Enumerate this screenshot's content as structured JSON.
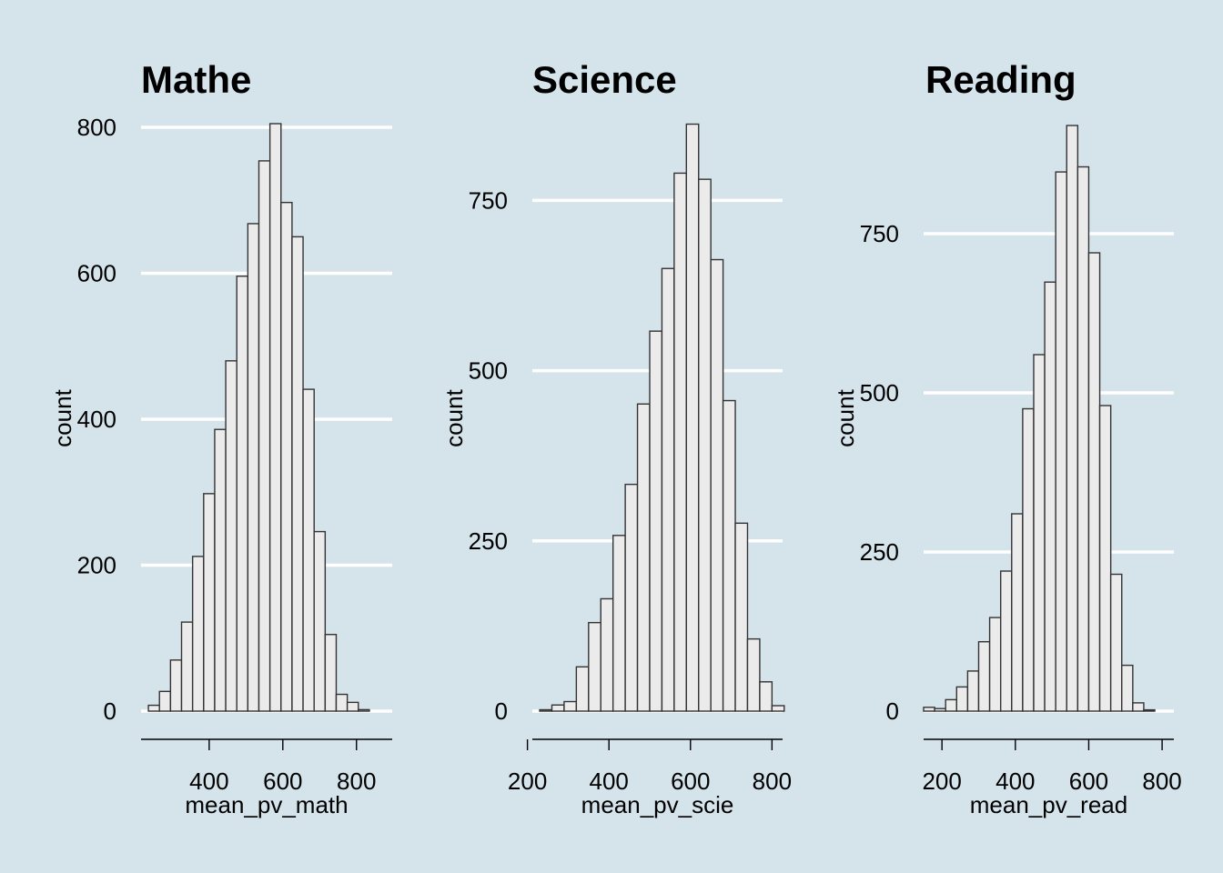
{
  "chart_data": [
    {
      "type": "bar",
      "title": "Mathe",
      "xlabel": "mean_pv_math",
      "ylabel": "count",
      "xlim": [
        215,
        897
      ],
      "ylim": [
        0,
        800
      ],
      "xticks": [
        400,
        600,
        800
      ],
      "yticks": [
        0,
        200,
        400,
        600,
        800
      ],
      "bin_width": 30,
      "bins": [
        250,
        280,
        310,
        340,
        370,
        400,
        430,
        460,
        490,
        520,
        550,
        580,
        610,
        640,
        670,
        700,
        730,
        760,
        790,
        820,
        850
      ],
      "values": [
        8,
        27,
        70,
        122,
        212,
        298,
        386,
        480,
        596,
        668,
        754,
        805,
        697,
        650,
        441,
        246,
        105,
        23,
        12,
        2,
        0
      ]
    },
    {
      "type": "bar",
      "title": "Science",
      "xlabel": "mean_pv_scie",
      "ylabel": "count",
      "xlim": [
        212,
        826
      ],
      "ylim": [
        0,
        860
      ],
      "xticks": [
        200,
        400,
        600,
        800
      ],
      "yticks": [
        0,
        250,
        500,
        750
      ],
      "bin_width": 30,
      "bins": [
        245,
        275,
        305,
        335,
        365,
        395,
        425,
        455,
        485,
        515,
        545,
        575,
        605,
        635,
        665,
        695,
        725,
        755,
        785,
        815
      ],
      "values": [
        2,
        9,
        14,
        65,
        130,
        165,
        258,
        333,
        451,
        558,
        650,
        790,
        862,
        781,
        663,
        456,
        276,
        106,
        43,
        8
      ]
    },
    {
      "type": "bar",
      "title": "Reading",
      "xlabel": "mean_pv_read",
      "ylabel": "count",
      "xlim": [
        150,
        832
      ],
      "ylim": [
        0,
        920
      ],
      "xticks": [
        200,
        400,
        600,
        800
      ],
      "yticks": [
        0,
        250,
        500,
        750
      ],
      "bin_width": 30,
      "bins": [
        165,
        195,
        225,
        255,
        285,
        315,
        345,
        375,
        405,
        435,
        465,
        495,
        525,
        555,
        585,
        615,
        645,
        675,
        705,
        735,
        765,
        795,
        825
      ],
      "values": [
        6,
        4,
        18,
        38,
        63,
        109,
        147,
        220,
        310,
        475,
        560,
        674,
        847,
        920,
        855,
        720,
        480,
        215,
        72,
        13,
        2,
        0,
        0
      ]
    }
  ]
}
